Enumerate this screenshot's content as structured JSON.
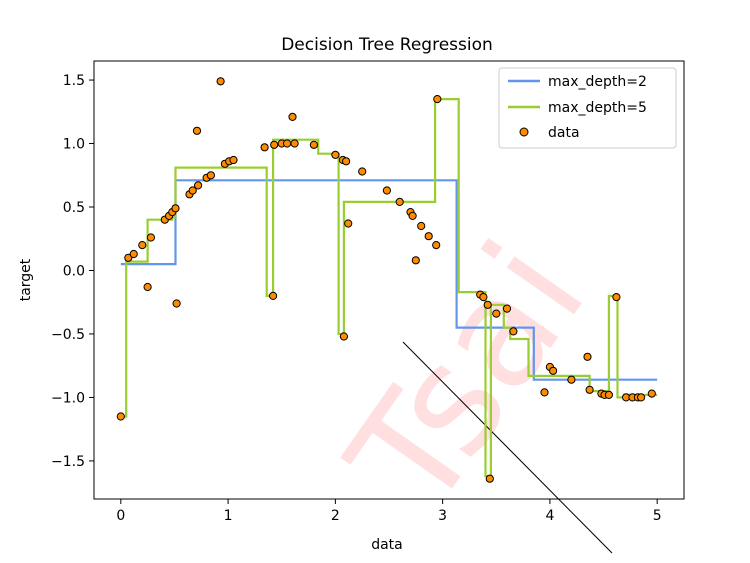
{
  "chart_data": {
    "type": "line",
    "title": "Decision Tree Regression",
    "xlabel": "data",
    "ylabel": "target",
    "xlim": [
      -0.25,
      5.25
    ],
    "ylim": [
      -1.8,
      1.65
    ],
    "xticks": [
      0,
      1,
      2,
      3,
      4,
      5
    ],
    "xtick_labels": [
      "0",
      "1",
      "2",
      "3",
      "4",
      "5"
    ],
    "yticks": [
      -1.5,
      -1.0,
      -0.5,
      0.0,
      0.5,
      1.0,
      1.5
    ],
    "ytick_labels": [
      "−1.5",
      "−1.0",
      "−0.5",
      "0.0",
      "0.5",
      "1.0",
      "1.5"
    ],
    "grid": false,
    "legend_position": "top-right",
    "series": [
      {
        "name": "max_depth=2",
        "kind": "step-line",
        "color": "#6495ed",
        "x": [
          0.0,
          0.51,
          0.51,
          3.13,
          3.13,
          3.85,
          3.85,
          5.0
        ],
        "y": [
          0.05,
          0.05,
          0.71,
          0.71,
          -0.45,
          -0.45,
          -0.86,
          -0.86
        ]
      },
      {
        "name": "max_depth=5",
        "kind": "step-line",
        "color": "#9acd32",
        "x": [
          0.0,
          0.05,
          0.05,
          0.25,
          0.25,
          0.48,
          0.48,
          0.51,
          0.51,
          1.36,
          1.36,
          1.42,
          1.42,
          1.84,
          1.84,
          2.03,
          2.03,
          2.08,
          2.08,
          2.93,
          2.93,
          3.15,
          3.15,
          3.4,
          3.4,
          3.45,
          3.45,
          3.57,
          3.57,
          3.63,
          3.63,
          3.8,
          3.8,
          4.37,
          4.37,
          4.55,
          4.55,
          4.63,
          4.63,
          4.69,
          4.69,
          5.0
        ],
        "y": [
          -1.15,
          -1.15,
          0.07,
          0.07,
          0.4,
          0.4,
          0.42,
          0.42,
          0.81,
          0.81,
          -0.2,
          -0.2,
          1.03,
          1.03,
          0.92,
          0.92,
          -0.5,
          -0.5,
          0.54,
          0.54,
          1.35,
          1.35,
          -0.17,
          -0.17,
          -1.62,
          -1.62,
          -0.27,
          -0.27,
          -0.45,
          -0.45,
          -0.54,
          -0.54,
          -0.83,
          -0.83,
          -0.95,
          -0.95,
          -0.2,
          -0.2,
          -1.0,
          -1.0,
          -0.98,
          -0.98
        ]
      },
      {
        "name": "data",
        "kind": "scatter",
        "color": "#ff8c00",
        "x": [
          0.0,
          0.07,
          0.12,
          0.2,
          0.25,
          0.28,
          0.41,
          0.45,
          0.48,
          0.51,
          0.52,
          0.64,
          0.67,
          0.71,
          0.72,
          0.8,
          0.84,
          0.93,
          0.97,
          1.01,
          1.05,
          1.34,
          1.42,
          1.43,
          1.5,
          1.55,
          1.6,
          1.62,
          1.8,
          2.0,
          2.07,
          2.08,
          2.1,
          2.12,
          2.25,
          2.48,
          2.6,
          2.7,
          2.72,
          2.75,
          2.8,
          2.87,
          2.94,
          2.95,
          3.35,
          3.38,
          3.42,
          3.44,
          3.5,
          3.6,
          3.66,
          3.95,
          4.0,
          4.03,
          4.2,
          4.35,
          4.37,
          4.48,
          4.51,
          4.55,
          4.62,
          4.71,
          4.77,
          4.82,
          4.85,
          4.95
        ],
        "y": [
          -1.15,
          0.1,
          0.13,
          0.2,
          -0.13,
          0.26,
          0.4,
          0.43,
          0.46,
          0.49,
          -0.26,
          0.6,
          0.63,
          1.1,
          0.67,
          0.73,
          0.75,
          1.49,
          0.84,
          0.86,
          0.87,
          0.97,
          -0.2,
          0.99,
          1.0,
          1.0,
          1.21,
          1.0,
          0.99,
          0.91,
          0.87,
          -0.52,
          0.86,
          0.37,
          0.78,
          0.63,
          0.54,
          0.46,
          0.43,
          0.08,
          0.35,
          0.27,
          0.2,
          1.35,
          -0.19,
          -0.21,
          -0.27,
          -1.64,
          -0.34,
          -0.3,
          -0.48,
          -0.96,
          -0.76,
          -0.79,
          -0.86,
          -0.68,
          -0.94,
          -0.97,
          -0.98,
          -0.98,
          -0.21,
          -1.0,
          -1.0,
          -1.0,
          -1.0,
          -0.97
        ]
      }
    ]
  },
  "watermark_text": "Tsai"
}
